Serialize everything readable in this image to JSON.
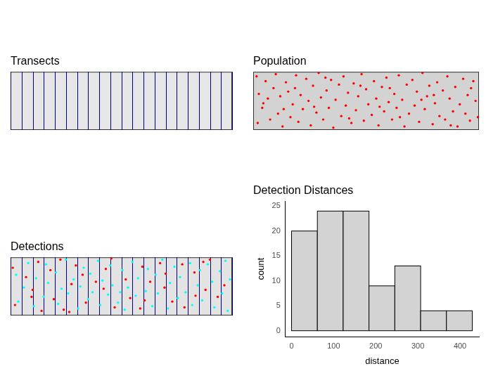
{
  "chart_data": [
    {
      "type": "transects",
      "title": "Transects",
      "xlim": [
        0,
        20
      ],
      "ylim": [
        0,
        5
      ],
      "tick_labels": false,
      "series": [
        {
          "type": "transect",
          "color": "#00008b",
          "x": [
            0,
            1,
            2,
            3,
            4,
            5,
            6,
            7,
            8,
            9,
            10,
            11,
            12,
            13,
            14,
            15,
            16,
            17,
            18,
            19,
            20
          ]
        }
      ]
    },
    {
      "type": "scatter",
      "title": "Population",
      "xlim": [
        0,
        20
      ],
      "ylim": [
        0,
        5
      ],
      "tick_labels": false,
      "series": [
        {
          "type": "scatter",
          "color": "#ff0000",
          "x": [
            0.3,
            0.5,
            0.8,
            0.4,
            1.1,
            1.3,
            1.5,
            1.8,
            2.0,
            2.2,
            2.4,
            2.6,
            2.9,
            3.1,
            3.3,
            3.5,
            3.8,
            4.0,
            4.2,
            4.4,
            4.7,
            4.9,
            5.1,
            5.3,
            5.6,
            5.8,
            6.0,
            6.2,
            6.5,
            6.7,
            6.9,
            7.1,
            7.3,
            7.6,
            7.8,
            8.0,
            8.2,
            8.4,
            8.7,
            8.9,
            9.1,
            9.3,
            9.6,
            9.8,
            10.0,
            10.2,
            10.5,
            10.7,
            10.9,
            11.1,
            11.4,
            11.6,
            11.8,
            12.0,
            12.3,
            12.5,
            12.7,
            12.9,
            13.2,
            13.4,
            13.6,
            13.8,
            14.1,
            14.3,
            14.5,
            14.7,
            15.0,
            15.2,
            15.4,
            15.6,
            15.9,
            16.1,
            16.3,
            16.5,
            16.8,
            17.0,
            17.2,
            17.4,
            17.7,
            17.9,
            18.1,
            18.3,
            18.6,
            18.8,
            19.0,
            19.2,
            19.5,
            19.7,
            19.9,
            0.9,
            3.7,
            6.4,
            9.5,
            12.1,
            14.9,
            17.5,
            19.3,
            5.4,
            8.5,
            11.2,
            16.0,
            2.7,
            13.0
          ],
          "values": [
            4.6,
            3.1,
            1.9,
            0.6,
            4.2,
            2.7,
            0.9,
            3.6,
            4.8,
            1.4,
            2.9,
            0.3,
            4.1,
            3.3,
            1.1,
            2.2,
            4.7,
            0.7,
            3.0,
            1.8,
            4.4,
            2.5,
            0.4,
            3.8,
            1.5,
            4.9,
            2.8,
            0.9,
            3.4,
            1.9,
            4.3,
            0.2,
            2.6,
            3.9,
            1.2,
            4.6,
            2.1,
            3.2,
            0.6,
            4.0,
            1.7,
            2.9,
            4.8,
            0.8,
            3.5,
            2.2,
            1.3,
            4.2,
            2.7,
            0.4,
            3.7,
            1.6,
            4.5,
            2.4,
            0.9,
            3.1,
            1.9,
            4.7,
            2.6,
            0.3,
            3.9,
            1.4,
            4.3,
            2.1,
            3.3,
            0.7,
            4.9,
            1.8,
            2.9,
            3.8,
            0.5,
            2.3,
            4.1,
            1.2,
            3.4,
            0.9,
            4.6,
            2.7,
            1.6,
            3.7,
            0.3,
            2.2,
            4.4,
            1.4,
            3.0,
            0.8,
            4.2,
            2.5,
            1.1,
            2.3,
            3.6,
            4.5,
            3.8,
            3.6,
            2.6,
            0.4,
            3.6,
            2.0,
            1.0,
            2.0,
            3.0,
            1.8,
            1.1
          ]
        }
      ]
    },
    {
      "type": "scatter",
      "title": "Detections",
      "xlim": [
        0,
        20
      ],
      "ylim": [
        0,
        5
      ],
      "tick_labels": false,
      "series": [
        {
          "type": "transect",
          "color": "#00008b",
          "x": [
            0,
            1,
            2,
            3,
            4,
            5,
            6,
            7,
            8,
            9,
            10,
            11,
            12,
            13,
            14,
            15,
            16,
            17,
            18,
            19,
            20
          ]
        },
        {
          "type": "scatter",
          "color": "#ff0000",
          "x": [
            0.2,
            0.4,
            1.4,
            1.9,
            2.5,
            2.8,
            3.6,
            3.9,
            4.5,
            4.8,
            5.5,
            5.9,
            6.8,
            7.7,
            8.6,
            9.4,
            10.4,
            10.8,
            11.7,
            11.9,
            12.6,
            13.5,
            13.9,
            14.6,
            15.5,
            15.7,
            16.6,
            17.6,
            18.0,
            18.7,
            19.3,
            2.0,
            6.5,
            8.4,
            12.1,
            14.0,
            16.7,
            17.4,
            5.3,
            9.1
          ],
          "values": [
            4.1,
            0.9,
            3.3,
            1.6,
            4.6,
            0.4,
            3.9,
            1.4,
            4.8,
            0.5,
            2.7,
            4.3,
            1.1,
            2.9,
            4.0,
            0.7,
            3.1,
            1.5,
            0.6,
            4.2,
            2.9,
            4.5,
            2.4,
            1.2,
            4.4,
            0.7,
            3.7,
            2.2,
            4.8,
            1.6,
            2.6,
            2.2,
            3.5,
            2.3,
            1.3,
            3.6,
            1.7,
            4.6,
            0.3,
            4.9
          ]
        },
        {
          "type": "scatter",
          "color": "#00ffff",
          "x": [
            0.5,
            0.7,
            1.2,
            1.6,
            2.1,
            2.3,
            3.0,
            3.2,
            3.4,
            4.1,
            4.3,
            4.6,
            5.0,
            5.2,
            5.7,
            6.1,
            6.3,
            6.6,
            7.0,
            7.2,
            7.4,
            7.9,
            8.1,
            8.3,
            8.8,
            9.0,
            9.2,
            9.7,
            10.1,
            10.3,
            10.6,
            11.0,
            11.3,
            11.5,
            12.2,
            12.4,
            12.8,
            13.1,
            13.3,
            13.7,
            14.2,
            14.4,
            14.8,
            15.1,
            15.3,
            15.8,
            16.2,
            16.4,
            16.9,
            17.1,
            17.3,
            17.8,
            18.2,
            18.4,
            18.9,
            19.1,
            19.4,
            19.6,
            19.8,
            9.9
          ],
          "values": [
            3.5,
            1.2,
            2.4,
            4.5,
            0.8,
            3.2,
            1.6,
            4.4,
            2.8,
            3.7,
            1.0,
            2.3,
            4.8,
            1.9,
            3.1,
            0.6,
            2.5,
            4.1,
            1.4,
            3.6,
            2.0,
            4.7,
            0.9,
            3.0,
            1.8,
            4.3,
            2.6,
            1.1,
            3.9,
            0.5,
            2.4,
            4.6,
            1.7,
            3.2,
            2.1,
            4.0,
            0.8,
            3.5,
            1.9,
            4.8,
            0.6,
            2.8,
            4.2,
            1.5,
            3.3,
            2.0,
            4.5,
            0.9,
            2.6,
            3.9,
            1.3,
            4.4,
            2.9,
            0.7,
            3.8,
            1.9,
            4.7,
            0.4,
            3.1,
            2.0
          ]
        }
      ]
    },
    {
      "type": "histogram",
      "title": "Detection Distances",
      "x_label": "distance",
      "y_label": "count",
      "bins": [
        0,
        61.3,
        122.6,
        183.9,
        245.2,
        306.5,
        367.8,
        429.1
      ],
      "values": [
        20,
        24,
        24,
        9,
        13,
        4,
        4
      ],
      "color": "#d3d3d3",
      "xlim": [
        -14.5,
        445
      ],
      "ylim": [
        -1.2,
        26
      ],
      "xticks": [
        0,
        100,
        200,
        300,
        400
      ],
      "yticks": [
        0,
        5,
        10,
        15,
        20,
        25
      ],
      "grid": false
    }
  ]
}
